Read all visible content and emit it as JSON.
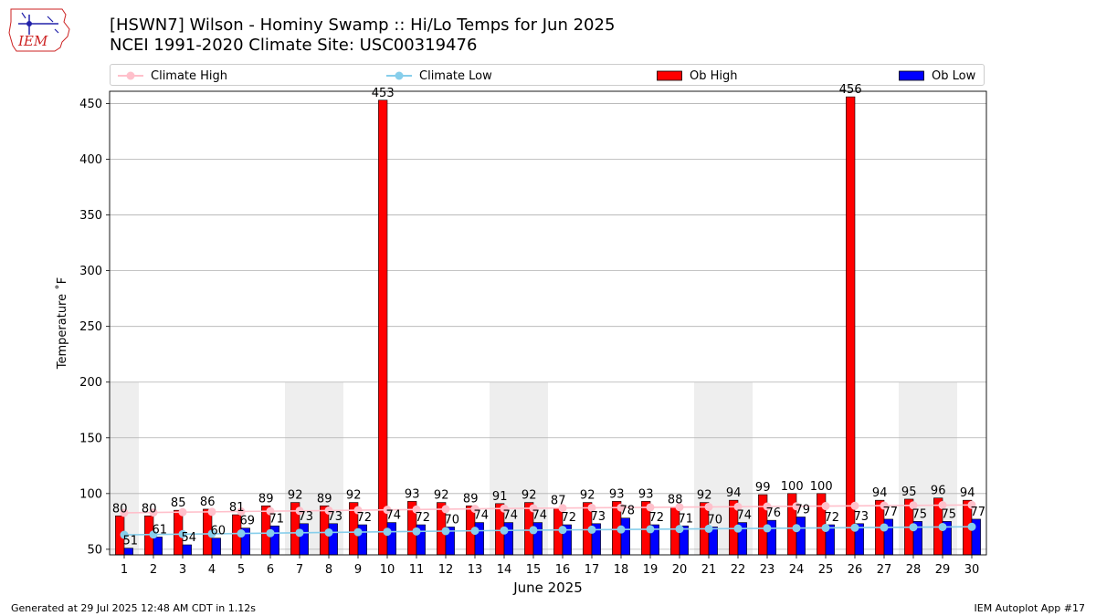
{
  "header": {
    "title_line1": "[HSWN7] Wilson - Hominy Swamp :: Hi/Lo Temps for Jun 2025",
    "title_line2": "NCEI 1991-2020 Climate Site: USC00319476"
  },
  "logo": {
    "text": "IEM",
    "color": "#cc2222"
  },
  "legend": {
    "climate_high": "Climate High",
    "climate_low": "Climate Low",
    "ob_high": "Ob High",
    "ob_low": "Ob Low"
  },
  "footer": {
    "left": "Generated at 29 Jul 2025 12:48 AM CDT in 1.12s",
    "right": "IEM Autoplot App #17"
  },
  "colors": {
    "ob_high": "#ff0000",
    "ob_low": "#0000ff",
    "climate_high": "#ffc0cb",
    "climate_low": "#87ceeb",
    "weekend_shade": "#eeeeee",
    "grid": "#b0b0b0"
  },
  "chart_data": {
    "type": "bar",
    "xlabel": "June 2025",
    "ylabel": "Temperature ˚F",
    "ylim": [
      45,
      461
    ],
    "yticks": [
      50,
      100,
      150,
      200,
      250,
      300,
      350,
      400,
      450
    ],
    "grid": "horizontal",
    "legend_position": "top",
    "weekend_shade_top": 200,
    "weekend_days": [
      1,
      7,
      8,
      14,
      15,
      21,
      22,
      28,
      29
    ],
    "categories": [
      "1",
      "2",
      "3",
      "4",
      "5",
      "6",
      "7",
      "8",
      "9",
      "10",
      "11",
      "12",
      "13",
      "14",
      "15",
      "16",
      "17",
      "18",
      "19",
      "20",
      "21",
      "22",
      "23",
      "24",
      "25",
      "26",
      "27",
      "28",
      "29",
      "30"
    ],
    "series": [
      {
        "name": "Ob High",
        "kind": "bar",
        "values": [
          80,
          80,
          85,
          86,
          81,
          89,
          92,
          89,
          92,
          453,
          93,
          92,
          89,
          91,
          92,
          87,
          92,
          93,
          93,
          88,
          92,
          94,
          99,
          100,
          100,
          456,
          94,
          95,
          96,
          94
        ]
      },
      {
        "name": "Ob Low",
        "kind": "bar",
        "values": [
          51,
          61,
          54,
          60,
          69,
          71,
          73,
          73,
          72,
          74,
          72,
          70,
          74,
          74,
          74,
          72,
          73,
          78,
          72,
          71,
          70,
          74,
          76,
          79,
          72,
          73,
          77,
          75,
          75,
          77
        ]
      },
      {
        "name": "Climate High",
        "kind": "line",
        "values": [
          82.7,
          83.0,
          83.3,
          83.6,
          83.9,
          84.2,
          84.5,
          84.8,
          85.1,
          85.4,
          85.7,
          86.0,
          86.3,
          86.6,
          86.8,
          87.0,
          87.2,
          87.4,
          87.6,
          87.8,
          88.0,
          88.2,
          88.4,
          88.6,
          88.8,
          89.0,
          89.2,
          89.4,
          89.6,
          89.8
        ]
      },
      {
        "name": "Climate Low",
        "kind": "line",
        "values": [
          63.0,
          63.3,
          63.6,
          63.9,
          64.2,
          64.5,
          64.8,
          65.1,
          65.4,
          65.7,
          66.0,
          66.3,
          66.6,
          66.9,
          67.2,
          67.4,
          67.6,
          67.8,
          68.0,
          68.2,
          68.4,
          68.6,
          68.8,
          69.0,
          69.2,
          69.4,
          69.6,
          69.8,
          70.0,
          70.2
        ]
      }
    ]
  }
}
